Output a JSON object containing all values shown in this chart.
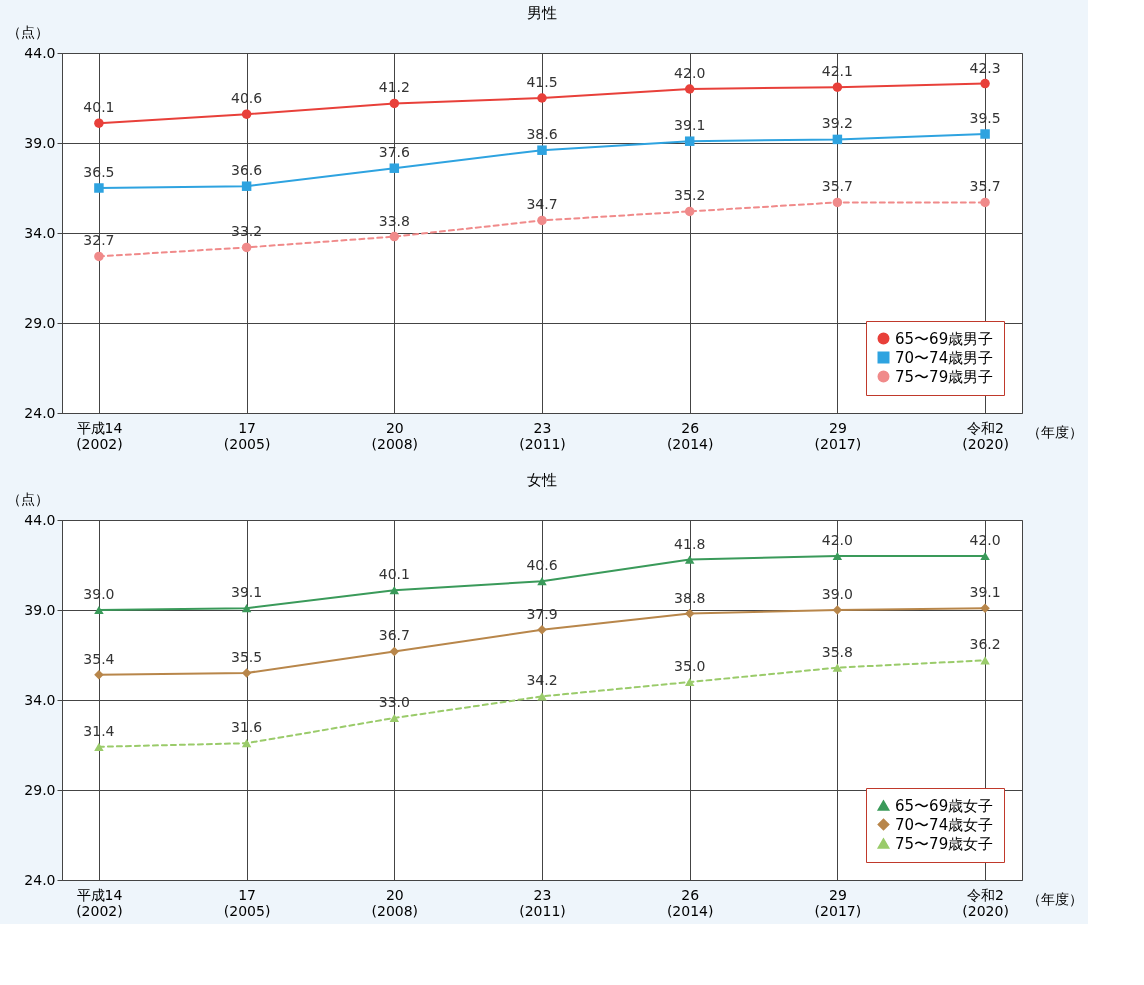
{
  "chart_data": [
    {
      "type": "line",
      "title": "男性",
      "ylabel": "（点）",
      "xlabel": "（年度）",
      "categories": [
        "平成14\n(2002)",
        "17\n(2005)",
        "20\n(2008)",
        "23\n(2011)",
        "26\n(2014)",
        "29\n(2017)",
        "令和2\n(2020)"
      ],
      "ylim": [
        24,
        44
      ],
      "yticks": [
        {
          "value": 24,
          "label": "24.0"
        },
        {
          "value": 29,
          "label": "29.0"
        },
        {
          "value": 34,
          "label": "34.0"
        },
        {
          "value": 39,
          "label": "39.0"
        },
        {
          "value": 44,
          "label": "44.0"
        }
      ],
      "grid": true,
      "legend": "bottom right",
      "series": [
        {
          "name": "65〜69歳男子",
          "color": "#e8403a",
          "marker": "circle",
          "line_style": "solid",
          "values": [
            40.1,
            40.6,
            41.2,
            41.5,
            42.0,
            42.1,
            42.3
          ],
          "value_labels": [
            "40.1",
            "40.6",
            "41.2",
            "41.5",
            "42.0",
            "42.1",
            "42.3"
          ]
        },
        {
          "name": "70〜74歳男子",
          "color": "#2ea3e0",
          "marker": "square",
          "line_style": "solid",
          "values": [
            36.5,
            36.6,
            37.6,
            38.6,
            39.1,
            39.2,
            39.5
          ],
          "value_labels": [
            "36.5",
            "36.6",
            "37.6",
            "38.6",
            "39.1",
            "39.2",
            "39.5"
          ]
        },
        {
          "name": "75〜79歳男子",
          "color": "#f08a8a",
          "marker": "circle",
          "line_style": "dashed",
          "values": [
            32.7,
            33.2,
            33.8,
            34.7,
            35.2,
            35.7,
            35.7
          ],
          "value_labels": [
            "32.7",
            "33.2",
            "33.8",
            "34.7",
            "35.2",
            "35.7",
            "35.7"
          ]
        }
      ]
    },
    {
      "type": "line",
      "title": "女性",
      "ylabel": "（点）",
      "xlabel": "（年度）",
      "categories": [
        "平成14\n(2002)",
        "17\n(2005)",
        "20\n(2008)",
        "23\n(2011)",
        "26\n(2014)",
        "29\n(2017)",
        "令和2\n(2020)"
      ],
      "ylim": [
        24,
        44
      ],
      "yticks": [
        {
          "value": 24,
          "label": "24.0"
        },
        {
          "value": 29,
          "label": "29.0"
        },
        {
          "value": 34,
          "label": "34.0"
        },
        {
          "value": 39,
          "label": "39.0"
        },
        {
          "value": 44,
          "label": "44.0"
        }
      ],
      "grid": true,
      "legend": "bottom right",
      "series": [
        {
          "name": "65〜69歳女子",
          "color": "#3a9a5a",
          "marker": "triangle",
          "line_style": "solid",
          "values": [
            39.0,
            39.1,
            40.1,
            40.6,
            41.8,
            42.0,
            42.0
          ],
          "value_labels": [
            "39.0",
            "39.1",
            "40.1",
            "40.6",
            "41.8",
            "42.0",
            "42.0"
          ]
        },
        {
          "name": "70〜74歳女子",
          "color": "#b8864a",
          "marker": "diamond",
          "line_style": "solid",
          "values": [
            35.4,
            35.5,
            36.7,
            37.9,
            38.8,
            39.0,
            39.1
          ],
          "value_labels": [
            "35.4",
            "35.5",
            "36.7",
            "37.9",
            "38.8",
            "39.0",
            "39.1"
          ]
        },
        {
          "name": "75〜79歳女子",
          "color": "#9acb6a",
          "marker": "triangle",
          "line_style": "dashed",
          "values": [
            31.4,
            31.6,
            33.0,
            34.2,
            35.0,
            35.8,
            36.2
          ],
          "value_labels": [
            "31.4",
            "31.6",
            "33.0",
            "34.2",
            "35.0",
            "35.8",
            "36.2"
          ]
        }
      ]
    }
  ]
}
